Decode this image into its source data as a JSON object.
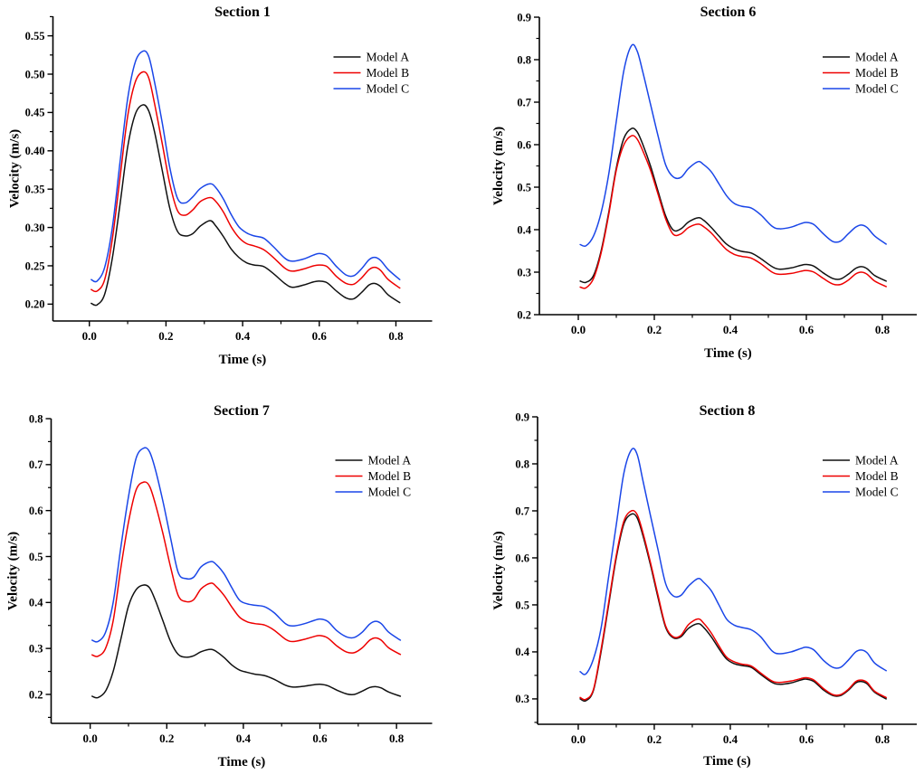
{
  "page": {
    "background": "#ffffff"
  },
  "legend_labels": [
    "Model A",
    "Model B",
    "Model C"
  ],
  "series_colors": [
    "#111111",
    "#ee0000",
    "#1a46e8"
  ],
  "time_points": [
    0.005,
    0.02,
    0.04,
    0.06,
    0.08,
    0.1,
    0.12,
    0.14,
    0.155,
    0.17,
    0.19,
    0.21,
    0.23,
    0.25,
    0.27,
    0.29,
    0.315,
    0.33,
    0.35,
    0.37,
    0.39,
    0.41,
    0.43,
    0.455,
    0.48,
    0.51,
    0.53,
    0.56,
    0.585,
    0.6,
    0.62,
    0.645,
    0.67,
    0.69,
    0.71,
    0.73,
    0.745,
    0.76,
    0.78,
    0.81
  ],
  "chart_data": [
    {
      "type": "line",
      "title": "Section 1",
      "xlabel": "Time (s)",
      "ylabel": "Velocity (m/s)",
      "xlim": [
        -0.095,
        0.8945
      ],
      "ylim": [
        0.178,
        0.5755
      ],
      "grid": false,
      "legend_position": "top-right",
      "xticks": {
        "values": [
          0.0,
          0.2,
          0.4,
          0.6,
          0.8
        ],
        "labels": [
          "0.0",
          "0.2",
          "0.4",
          "0.6",
          "0.8"
        ],
        "minor": [
          0.1,
          0.3,
          0.5,
          0.7
        ]
      },
      "yticks": {
        "values": [
          0.2,
          0.25,
          0.3,
          0.35,
          0.4,
          0.45,
          0.5,
          0.55
        ],
        "labels": [
          "0.20",
          "0.25",
          "0.30",
          "0.35",
          "0.40",
          "0.45",
          "0.50",
          "0.55"
        ],
        "minor": [
          0.225,
          0.275,
          0.325,
          0.375,
          0.425,
          0.475,
          0.525,
          0.575
        ]
      },
      "series": [
        {
          "name": "Model A",
          "color": "#111111",
          "values": [
            0.201,
            0.199,
            0.213,
            0.26,
            0.33,
            0.405,
            0.448,
            0.46,
            0.452,
            0.425,
            0.375,
            0.325,
            0.295,
            0.289,
            0.292,
            0.302,
            0.309,
            0.302,
            0.288,
            0.272,
            0.261,
            0.254,
            0.251,
            0.249,
            0.24,
            0.227,
            0.222,
            0.225,
            0.229,
            0.23,
            0.228,
            0.217,
            0.208,
            0.207,
            0.215,
            0.225,
            0.227,
            0.223,
            0.212,
            0.202
          ]
        },
        {
          "name": "Model B",
          "color": "#ee0000",
          "values": [
            0.219,
            0.217,
            0.232,
            0.285,
            0.365,
            0.445,
            0.49,
            0.503,
            0.495,
            0.462,
            0.41,
            0.357,
            0.322,
            0.316,
            0.323,
            0.334,
            0.339,
            0.334,
            0.32,
            0.301,
            0.287,
            0.279,
            0.276,
            0.271,
            0.261,
            0.247,
            0.243,
            0.246,
            0.25,
            0.251,
            0.249,
            0.236,
            0.227,
            0.226,
            0.234,
            0.245,
            0.248,
            0.244,
            0.232,
            0.221
          ]
        },
        {
          "name": "Model C",
          "color": "#1a46e8",
          "values": [
            0.232,
            0.23,
            0.248,
            0.3,
            0.385,
            0.468,
            0.516,
            0.53,
            0.523,
            0.49,
            0.437,
            0.378,
            0.338,
            0.332,
            0.34,
            0.351,
            0.357,
            0.352,
            0.337,
            0.317,
            0.301,
            0.293,
            0.289,
            0.286,
            0.275,
            0.26,
            0.256,
            0.259,
            0.264,
            0.266,
            0.263,
            0.249,
            0.238,
            0.237,
            0.246,
            0.258,
            0.261,
            0.257,
            0.245,
            0.232
          ]
        }
      ]
    },
    {
      "type": "line",
      "title": "Section 6",
      "xlabel": "Time (s)",
      "ylabel": "Velocity (m/s)",
      "xlim": [
        -0.1024,
        0.8905
      ],
      "ylim": [
        0.2,
        0.9
      ],
      "grid": false,
      "legend_position": "top-right",
      "xticks": {
        "values": [
          0.0,
          0.2,
          0.4,
          0.6,
          0.8
        ],
        "labels": [
          "0.0",
          "0.2",
          "0.4",
          "0.6",
          "0.8"
        ],
        "minor": [
          0.1,
          0.3,
          0.5,
          0.7
        ]
      },
      "yticks": {
        "values": [
          0.2,
          0.3,
          0.4,
          0.5,
          0.6,
          0.7,
          0.8,
          0.9
        ],
        "labels": [
          "0.2",
          "0.3",
          "0.4",
          "0.5",
          "0.6",
          "0.7",
          "0.8",
          "0.9"
        ],
        "minor": [
          0.25,
          0.35,
          0.45,
          0.55,
          0.65,
          0.75,
          0.85
        ]
      },
      "series": [
        {
          "name": "Model A",
          "color": "#111111",
          "values": [
            0.279,
            0.276,
            0.292,
            0.35,
            0.44,
            0.545,
            0.615,
            0.638,
            0.63,
            0.6,
            0.55,
            0.49,
            0.432,
            0.399,
            0.402,
            0.418,
            0.428,
            0.422,
            0.405,
            0.385,
            0.366,
            0.355,
            0.349,
            0.345,
            0.332,
            0.313,
            0.307,
            0.31,
            0.316,
            0.318,
            0.314,
            0.298,
            0.285,
            0.284,
            0.295,
            0.309,
            0.313,
            0.308,
            0.292,
            0.279
          ]
        },
        {
          "name": "Model B",
          "color": "#ee0000",
          "values": [
            0.265,
            0.263,
            0.285,
            0.345,
            0.435,
            0.54,
            0.6,
            0.621,
            0.613,
            0.585,
            0.54,
            0.483,
            0.425,
            0.389,
            0.39,
            0.405,
            0.413,
            0.407,
            0.392,
            0.372,
            0.353,
            0.342,
            0.337,
            0.333,
            0.32,
            0.3,
            0.295,
            0.297,
            0.302,
            0.304,
            0.3,
            0.285,
            0.272,
            0.271,
            0.281,
            0.296,
            0.3,
            0.295,
            0.279,
            0.266
          ]
        },
        {
          "name": "Model C",
          "color": "#1a46e8",
          "values": [
            0.365,
            0.362,
            0.385,
            0.44,
            0.53,
            0.655,
            0.775,
            0.833,
            0.82,
            0.77,
            0.695,
            0.62,
            0.552,
            0.524,
            0.523,
            0.544,
            0.56,
            0.553,
            0.536,
            0.508,
            0.48,
            0.462,
            0.455,
            0.451,
            0.435,
            0.408,
            0.402,
            0.406,
            0.414,
            0.417,
            0.412,
            0.39,
            0.372,
            0.373,
            0.39,
            0.406,
            0.411,
            0.405,
            0.385,
            0.366
          ]
        }
      ]
    },
    {
      "type": "line",
      "title": "Section 7",
      "xlabel": "Time (s)",
      "ylabel": "Velocity (m/s)",
      "xlim": [
        -0.102,
        0.893
      ],
      "ylim": [
        0.137,
        0.8
      ],
      "grid": false,
      "legend_position": "top-right",
      "xticks": {
        "values": [
          0.0,
          0.2,
          0.4,
          0.6,
          0.8
        ],
        "labels": [
          "0.0",
          "0.2",
          "0.4",
          "0.6",
          "0.8"
        ],
        "minor": [
          0.1,
          0.3,
          0.5,
          0.7
        ]
      },
      "yticks": {
        "values": [
          0.2,
          0.3,
          0.4,
          0.5,
          0.6,
          0.7,
          0.8
        ],
        "labels": [
          "0.2",
          "0.3",
          "0.4",
          "0.5",
          "0.6",
          "0.7",
          "0.8"
        ],
        "minor": [
          0.15,
          0.25,
          0.35,
          0.45,
          0.55,
          0.65,
          0.75
        ]
      },
      "series": [
        {
          "name": "Model A",
          "color": "#111111",
          "values": [
            0.196,
            0.193,
            0.207,
            0.25,
            0.32,
            0.392,
            0.428,
            0.438,
            0.432,
            0.405,
            0.36,
            0.315,
            0.287,
            0.281,
            0.284,
            0.293,
            0.298,
            0.293,
            0.28,
            0.264,
            0.253,
            0.248,
            0.244,
            0.241,
            0.233,
            0.22,
            0.216,
            0.218,
            0.221,
            0.222,
            0.219,
            0.209,
            0.201,
            0.2,
            0.207,
            0.215,
            0.217,
            0.214,
            0.205,
            0.196
          ]
        },
        {
          "name": "Model B",
          "color": "#ee0000",
          "values": [
            0.286,
            0.283,
            0.3,
            0.36,
            0.475,
            0.575,
            0.645,
            0.662,
            0.653,
            0.615,
            0.55,
            0.477,
            0.415,
            0.402,
            0.406,
            0.43,
            0.442,
            0.434,
            0.415,
            0.39,
            0.368,
            0.358,
            0.354,
            0.351,
            0.34,
            0.32,
            0.315,
            0.32,
            0.326,
            0.328,
            0.323,
            0.305,
            0.292,
            0.291,
            0.301,
            0.318,
            0.323,
            0.318,
            0.301,
            0.287
          ]
        },
        {
          "name": "Model C",
          "color": "#1a46e8",
          "values": [
            0.318,
            0.315,
            0.335,
            0.4,
            0.52,
            0.63,
            0.714,
            0.736,
            0.728,
            0.69,
            0.62,
            0.54,
            0.465,
            0.452,
            0.455,
            0.478,
            0.489,
            0.482,
            0.462,
            0.432,
            0.405,
            0.397,
            0.394,
            0.391,
            0.378,
            0.354,
            0.349,
            0.354,
            0.361,
            0.364,
            0.359,
            0.338,
            0.325,
            0.324,
            0.335,
            0.353,
            0.359,
            0.354,
            0.335,
            0.318
          ]
        }
      ]
    },
    {
      "type": "line",
      "title": "Section 8",
      "xlabel": "Time (s)",
      "ylabel": "Velocity (m/s)",
      "xlim": [
        -0.107,
        0.8905
      ],
      "ylim": [
        0.246,
        0.9
      ],
      "grid": false,
      "legend_position": "top-right",
      "xticks": {
        "values": [
          0.0,
          0.2,
          0.4,
          0.6,
          0.8
        ],
        "labels": [
          "0.0",
          "0.2",
          "0.4",
          "0.6",
          "0.8"
        ],
        "minor": [
          0.1,
          0.3,
          0.5,
          0.7
        ]
      },
      "yticks": {
        "values": [
          0.3,
          0.4,
          0.5,
          0.6,
          0.7,
          0.8,
          0.9
        ],
        "labels": [
          "0.3",
          "0.4",
          "0.5",
          "0.6",
          "0.7",
          "0.8",
          "0.9"
        ],
        "minor": [
          0.25,
          0.35,
          0.45,
          0.55,
          0.65,
          0.75,
          0.85
        ]
      },
      "series": [
        {
          "name": "Model A",
          "color": "#111111",
          "values": [
            0.3,
            0.296,
            0.318,
            0.4,
            0.5,
            0.6,
            0.672,
            0.693,
            0.685,
            0.648,
            0.585,
            0.515,
            0.452,
            0.43,
            0.432,
            0.45,
            0.46,
            0.452,
            0.432,
            0.407,
            0.385,
            0.375,
            0.371,
            0.367,
            0.352,
            0.335,
            0.331,
            0.334,
            0.34,
            0.342,
            0.337,
            0.319,
            0.307,
            0.307,
            0.318,
            0.334,
            0.337,
            0.332,
            0.314,
            0.3
          ]
        },
        {
          "name": "Model B",
          "color": "#ee0000",
          "values": [
            0.303,
            0.299,
            0.32,
            0.405,
            0.505,
            0.605,
            0.678,
            0.7,
            0.692,
            0.654,
            0.59,
            0.52,
            0.455,
            0.432,
            0.435,
            0.458,
            0.47,
            0.461,
            0.44,
            0.413,
            0.389,
            0.379,
            0.374,
            0.37,
            0.355,
            0.338,
            0.335,
            0.338,
            0.343,
            0.345,
            0.34,
            0.322,
            0.309,
            0.309,
            0.32,
            0.337,
            0.34,
            0.335,
            0.316,
            0.303
          ]
        },
        {
          "name": "Model C",
          "color": "#1a46e8",
          "values": [
            0.358,
            0.353,
            0.385,
            0.45,
            0.56,
            0.67,
            0.78,
            0.83,
            0.82,
            0.765,
            0.69,
            0.617,
            0.545,
            0.519,
            0.52,
            0.54,
            0.556,
            0.548,
            0.53,
            0.5,
            0.47,
            0.457,
            0.452,
            0.447,
            0.432,
            0.402,
            0.396,
            0.4,
            0.407,
            0.41,
            0.404,
            0.382,
            0.367,
            0.367,
            0.382,
            0.4,
            0.404,
            0.398,
            0.376,
            0.36
          ]
        }
      ]
    }
  ]
}
